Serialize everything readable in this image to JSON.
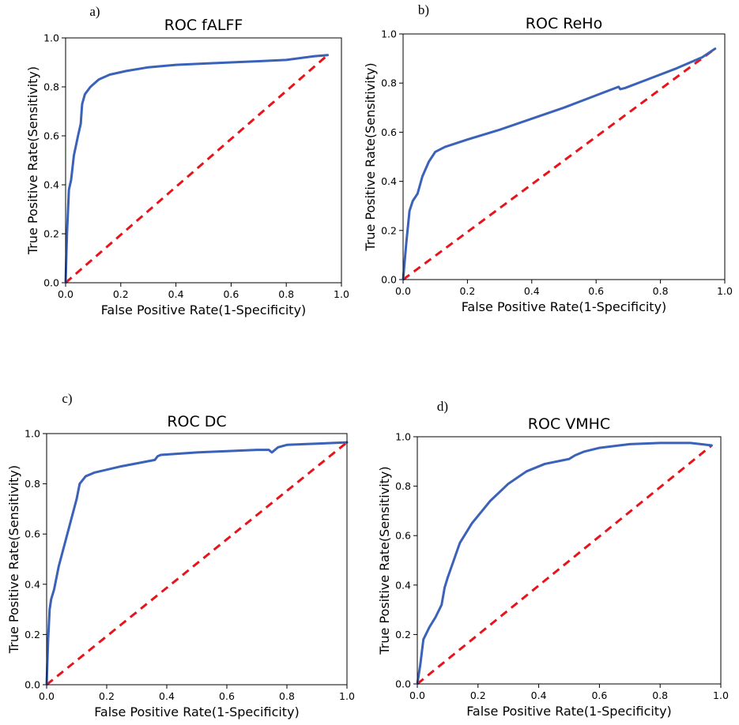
{
  "chart_data": [
    {
      "type": "line",
      "panel_label": "a)",
      "title": "ROC fALFF",
      "xlabel": "False Positive Rate(1-Specificity)",
      "ylabel": "True Positive Rate(Sensitivity)",
      "xlim": [
        0,
        1
      ],
      "ylim": [
        0,
        1
      ],
      "xticks": [
        "0.0",
        "0.2",
        "0.4",
        "0.6",
        "0.8",
        "1.0"
      ],
      "yticks": [
        "0.0",
        "0.2",
        "0.4",
        "0.6",
        "0.8",
        "1.0"
      ],
      "series": [
        {
          "name": "ROC",
          "x": [
            0.0,
            0.005,
            0.012,
            0.02,
            0.03,
            0.045,
            0.055,
            0.058,
            0.06,
            0.07,
            0.09,
            0.12,
            0.16,
            0.22,
            0.3,
            0.4,
            0.5,
            0.6,
            0.7,
            0.8,
            0.9,
            0.95
          ],
          "y": [
            0.0,
            0.2,
            0.38,
            0.42,
            0.52,
            0.6,
            0.65,
            0.7,
            0.73,
            0.77,
            0.8,
            0.83,
            0.85,
            0.865,
            0.88,
            0.89,
            0.895,
            0.9,
            0.905,
            0.91,
            0.925,
            0.93
          ]
        },
        {
          "name": "chance",
          "x": [
            0.0,
            0.95
          ],
          "y": [
            0.0,
            0.93
          ]
        }
      ]
    },
    {
      "type": "line",
      "panel_label": "b)",
      "title": "ROC ReHo",
      "xlabel": "False Positive Rate(1-Specificity)",
      "ylabel": "True Positive Rate(Sensitivity)",
      "xlim": [
        0,
        1
      ],
      "ylim": [
        0,
        1
      ],
      "xticks": [
        "0.0",
        "0.2",
        "0.4",
        "0.6",
        "0.8",
        "1.0"
      ],
      "yticks": [
        "0.0",
        "0.2",
        "0.4",
        "0.6",
        "0.8",
        "1.0"
      ],
      "series": [
        {
          "name": "ROC",
          "x": [
            0.0,
            0.01,
            0.02,
            0.03,
            0.045,
            0.06,
            0.08,
            0.1,
            0.13,
            0.2,
            0.3,
            0.4,
            0.5,
            0.6,
            0.65,
            0.67,
            0.675,
            0.69,
            0.75,
            0.85,
            0.93,
            0.97
          ],
          "y": [
            0.0,
            0.15,
            0.28,
            0.32,
            0.35,
            0.42,
            0.48,
            0.52,
            0.54,
            0.57,
            0.61,
            0.655,
            0.7,
            0.75,
            0.775,
            0.785,
            0.775,
            0.78,
            0.81,
            0.86,
            0.905,
            0.94
          ]
        },
        {
          "name": "chance",
          "x": [
            0.0,
            0.97
          ],
          "y": [
            0.0,
            0.94
          ]
        }
      ]
    },
    {
      "type": "line",
      "panel_label": "c)",
      "title": "ROC DC",
      "xlabel": "False Positive Rate(1-Specificity)",
      "ylabel": "True Positive Rate(Sensitivity)",
      "xlim": [
        0,
        1
      ],
      "ylim": [
        0,
        1
      ],
      "xticks": [
        "0.0",
        "0.2",
        "0.4",
        "0.6",
        "0.8",
        "1.0"
      ],
      "yticks": [
        "0.0",
        "0.2",
        "0.4",
        "0.6",
        "0.8",
        "1.0"
      ],
      "series": [
        {
          "name": "ROC",
          "x": [
            0.0,
            0.005,
            0.01,
            0.015,
            0.025,
            0.04,
            0.06,
            0.08,
            0.1,
            0.105,
            0.11,
            0.13,
            0.16,
            0.25,
            0.36,
            0.37,
            0.38,
            0.5,
            0.6,
            0.7,
            0.74,
            0.75,
            0.77,
            0.8,
            0.9,
            1.0
          ],
          "y": [
            0.0,
            0.18,
            0.3,
            0.34,
            0.38,
            0.47,
            0.56,
            0.65,
            0.74,
            0.77,
            0.8,
            0.83,
            0.845,
            0.87,
            0.895,
            0.91,
            0.915,
            0.925,
            0.93,
            0.935,
            0.935,
            0.925,
            0.945,
            0.955,
            0.96,
            0.965
          ]
        },
        {
          "name": "chance",
          "x": [
            0.0,
            1.0
          ],
          "y": [
            0.0,
            0.965
          ]
        }
      ]
    },
    {
      "type": "line",
      "panel_label": "d)",
      "title": "ROC VMHC",
      "xlabel": "False Positive Rate(1-Specificity)",
      "ylabel": "True Positive Rate(Sensitivity)",
      "xlim": [
        0,
        1
      ],
      "ylim": [
        0,
        1
      ],
      "xticks": [
        "0.0",
        "0.2",
        "0.4",
        "0.6",
        "0.8",
        "1.0"
      ],
      "yticks": [
        "0.0",
        "0.2",
        "0.4",
        "0.6",
        "0.8",
        "1.0"
      ],
      "series": [
        {
          "name": "ROC",
          "x": [
            0.0,
            0.01,
            0.02,
            0.04,
            0.06,
            0.08,
            0.09,
            0.1,
            0.12,
            0.14,
            0.18,
            0.24,
            0.3,
            0.36,
            0.42,
            0.48,
            0.5,
            0.52,
            0.55,
            0.6,
            0.7,
            0.8,
            0.9,
            0.97
          ],
          "y": [
            0.0,
            0.08,
            0.18,
            0.23,
            0.27,
            0.32,
            0.39,
            0.43,
            0.5,
            0.57,
            0.65,
            0.74,
            0.81,
            0.86,
            0.89,
            0.905,
            0.91,
            0.925,
            0.94,
            0.955,
            0.97,
            0.975,
            0.975,
            0.965
          ]
        },
        {
          "name": "chance",
          "x": [
            0.0,
            0.97
          ],
          "y": [
            0.0,
            0.965
          ]
        }
      ]
    }
  ]
}
